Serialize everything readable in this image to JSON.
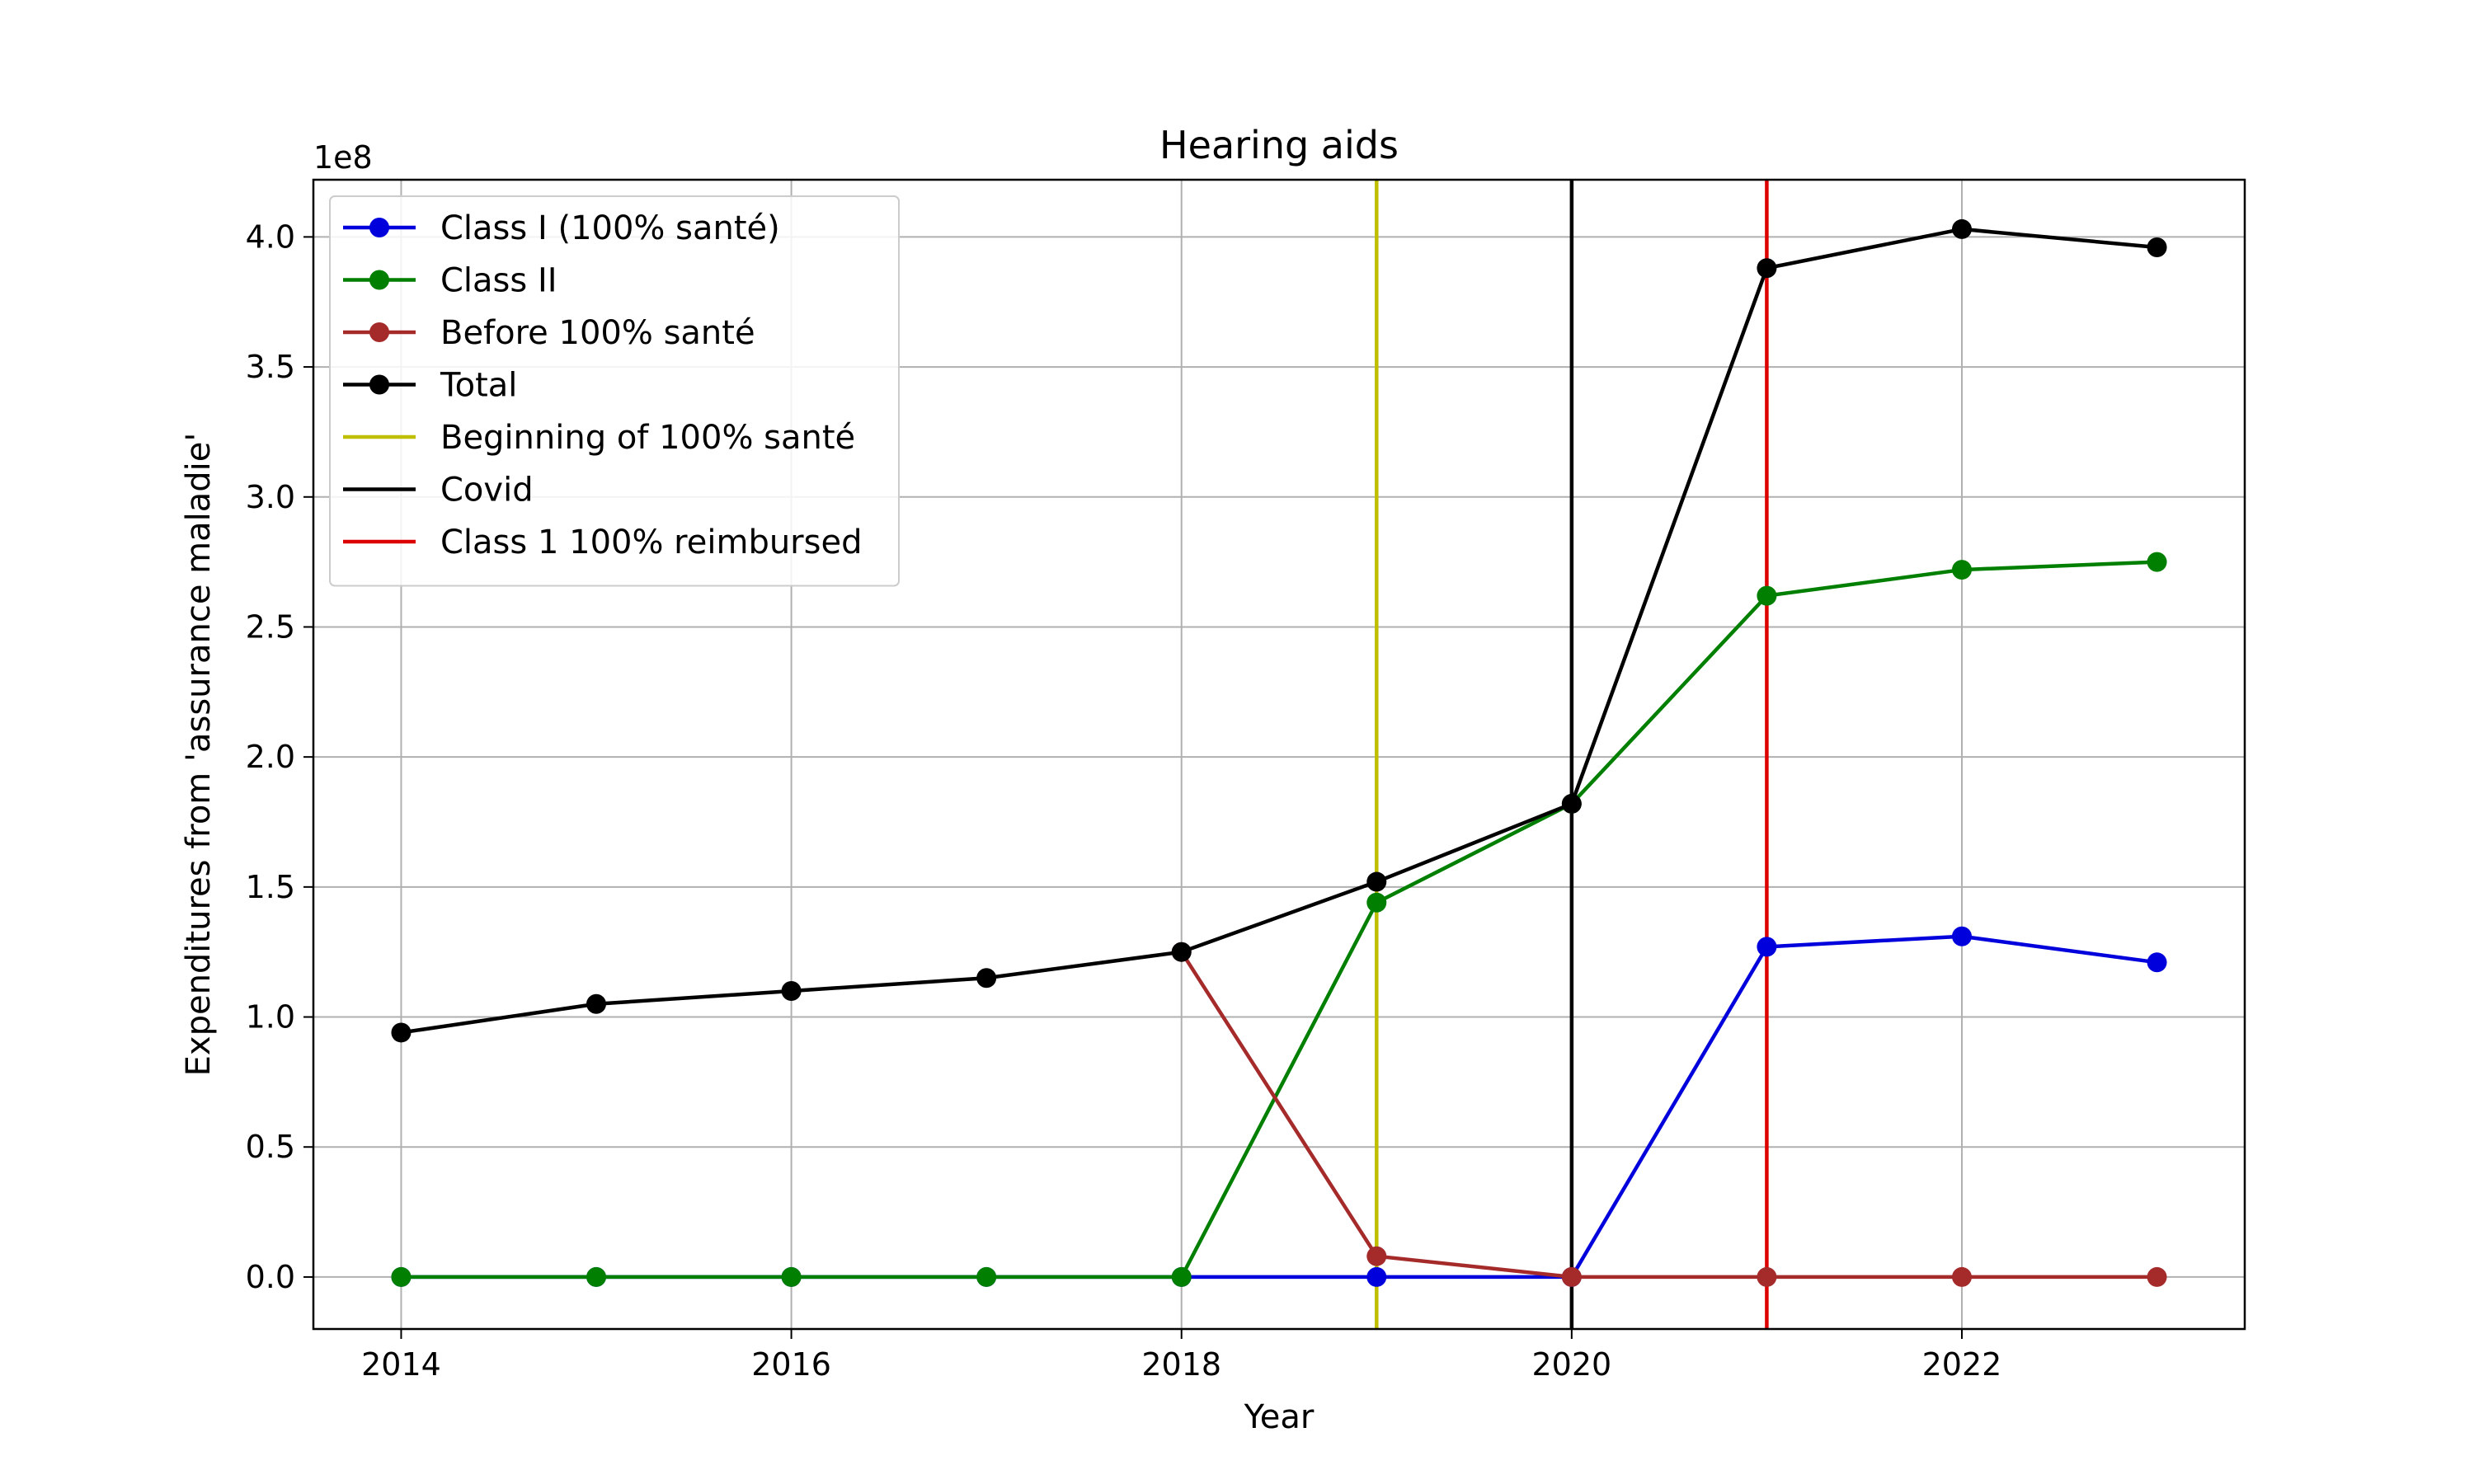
{
  "chart_data": {
    "type": "line",
    "title": "Hearing aids",
    "xlabel": "Year",
    "ylabel": "Expenditures from 'assurance maladie'",
    "y_offset_label": "1e8",
    "xlim": [
      2013.55,
      2023.45
    ],
    "ylim": [
      -0.2,
      4.22
    ],
    "x_ticks": [
      2014,
      2016,
      2018,
      2020,
      2022
    ],
    "x_tick_labels": [
      "2014",
      "2016",
      "2018",
      "2020",
      "2022"
    ],
    "y_ticks": [
      0.0,
      0.5,
      1.0,
      1.5,
      2.0,
      2.5,
      3.0,
      3.5,
      4.0
    ],
    "y_tick_labels": [
      "0.0",
      "0.5",
      "1.0",
      "1.5",
      "2.0",
      "2.5",
      "3.0",
      "3.5",
      "4.0"
    ],
    "grid": true,
    "legend_position": "top-left",
    "series": [
      {
        "name": "Class I (100% santé)",
        "color": "#0000dd",
        "marker": true,
        "x": [
          2014,
          2015,
          2016,
          2017,
          2018,
          2019,
          2020,
          2021,
          2022,
          2023
        ],
        "y": [
          0,
          0,
          0,
          0,
          0,
          0,
          0,
          1.27,
          1.31,
          1.21
        ]
      },
      {
        "name": "Class II",
        "color": "#007f00",
        "marker": true,
        "x": [
          2014,
          2015,
          2016,
          2017,
          2018,
          2019,
          2020,
          2021,
          2022,
          2023
        ],
        "y": [
          0,
          0,
          0,
          0,
          0,
          1.44,
          1.82,
          2.62,
          2.72,
          2.75
        ]
      },
      {
        "name": "Before 100% santé",
        "color": "#a52a2a",
        "marker": true,
        "x": [
          2018,
          2019,
          2020,
          2021,
          2022,
          2023
        ],
        "y": [
          1.25,
          0.08,
          0,
          0,
          0,
          0
        ]
      },
      {
        "name": "Total",
        "color": "#000000",
        "marker": true,
        "x": [
          2014,
          2015,
          2016,
          2017,
          2018,
          2019,
          2020,
          2021,
          2022,
          2023
        ],
        "y": [
          0.94,
          1.05,
          1.1,
          1.15,
          1.25,
          1.52,
          1.82,
          3.88,
          4.03,
          3.96
        ]
      }
    ],
    "vertical_lines": [
      {
        "name": "Beginning of 100% santé",
        "x": 2019,
        "color": "#bfbf00"
      },
      {
        "name": "Covid",
        "x": 2020,
        "color": "#000000"
      },
      {
        "name": "Class 1 100% reimbursed",
        "x": 2021,
        "color": "#dd0000"
      }
    ]
  }
}
